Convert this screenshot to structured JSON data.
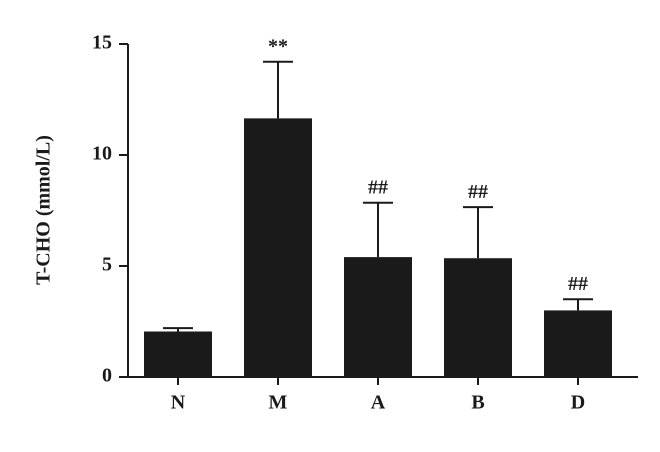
{
  "chart_data": {
    "type": "bar",
    "y_label": "T-CHO (mmol/L)",
    "categories": [
      "N",
      "M",
      "A",
      "B",
      "D"
    ],
    "values": [
      2.05,
      11.65,
      5.4,
      5.35,
      3.0
    ],
    "errors": [
      0.15,
      2.55,
      2.45,
      2.3,
      0.5
    ],
    "annotations": [
      null,
      "**",
      "##",
      "##",
      "##"
    ],
    "color": "#1a1a1a",
    "ylim": [
      0,
      15
    ],
    "yticks": [
      0,
      5,
      10,
      15
    ]
  }
}
